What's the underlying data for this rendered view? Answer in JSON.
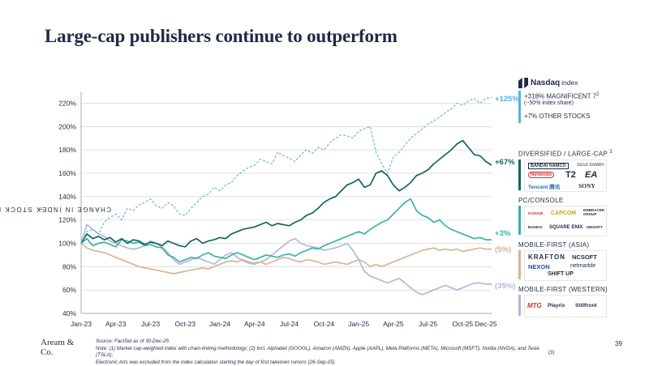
{
  "title": "Large-cap publishers continue to outperform",
  "colors": {
    "nasdaq": "#5bb3d6",
    "diversified": "#14655f",
    "pc_console": "#3bb3a3",
    "mobile_asia": "#d9b394",
    "mobile_western": "#b3b8d9",
    "grid": "#cccccc",
    "text": "#1f2a44"
  },
  "chart_data": {
    "type": "line",
    "title": "Large-cap publishers continue to outperform",
    "ylabel": "CHANGE IN INDEX STOCK PRICE",
    "ylabel_footnote": "1",
    "xlabel": "",
    "ylim": [
      40,
      230
    ],
    "yticks": [
      "40%",
      "60%",
      "80%",
      "100%",
      "120%",
      "140%",
      "160%",
      "180%",
      "200%",
      "220%"
    ],
    "ytick_values": [
      40,
      60,
      80,
      100,
      120,
      140,
      160,
      180,
      200,
      220
    ],
    "xticks": [
      "Jan-23",
      "Apr-23",
      "Jul-23",
      "Oct-23",
      "Jan-24",
      "Apr-24",
      "Jul-24",
      "Oct-24",
      "Jan-25",
      "Apr-25",
      "Jul-25",
      "Oct-25",
      "Dec-25"
    ],
    "xtick_months": [
      0,
      3,
      6,
      9,
      12,
      15,
      18,
      21,
      24,
      27,
      30,
      33,
      35
    ],
    "x_months": [
      0,
      0.5,
      1,
      1.5,
      2,
      2.5,
      3,
      3.5,
      4,
      4.5,
      5,
      5.5,
      6,
      6.5,
      7,
      7.5,
      8,
      8.5,
      9,
      9.5,
      10,
      10.5,
      11,
      11.5,
      12,
      12.5,
      13,
      13.5,
      14,
      14.5,
      15,
      15.5,
      16,
      16.5,
      17,
      17.5,
      18,
      18.5,
      19,
      19.5,
      20,
      20.5,
      21,
      21.5,
      22,
      22.5,
      23,
      23.5,
      24,
      24.5,
      25,
      25.5,
      26,
      26.5,
      27,
      27.5,
      28,
      28.5,
      29,
      29.5,
      30,
      30.5,
      31,
      31.5,
      32,
      32.5,
      33,
      33.5,
      34,
      34.5,
      35,
      35.5
    ],
    "series": [
      {
        "name": "Nasdaq index",
        "style": "dashed",
        "end_label": "+125%",
        "values": [
          100,
          110,
          112,
          108,
          118,
          122,
          125,
          120,
          130,
          128,
          133,
          135,
          138,
          132,
          130,
          135,
          132,
          125,
          124,
          130,
          135,
          140,
          142,
          148,
          145,
          150,
          152,
          158,
          162,
          165,
          167,
          172,
          170,
          168,
          178,
          175,
          173,
          170,
          176,
          180,
          177,
          182,
          180,
          186,
          190,
          193,
          192,
          190,
          196,
          198,
          200,
          178,
          168,
          160,
          174,
          178,
          184,
          190,
          194,
          198,
          202,
          205,
          208,
          212,
          215,
          220,
          218,
          222,
          224,
          220,
          224,
          225
        ]
      },
      {
        "name": "Diversified / Large-cap",
        "style": "solid",
        "end_label": "+67%",
        "values": [
          100,
          108,
          104,
          106,
          103,
          105,
          101,
          104,
          100,
          103,
          102,
          99,
          101,
          100,
          98,
          102,
          100,
          98,
          97,
          102,
          104,
          100,
          102,
          103,
          105,
          104,
          108,
          110,
          112,
          113,
          114,
          116,
          118,
          115,
          117,
          116,
          115,
          118,
          120,
          124,
          126,
          130,
          135,
          138,
          140,
          145,
          150,
          152,
          155,
          148,
          150,
          160,
          162,
          158,
          150,
          145,
          148,
          152,
          158,
          160,
          163,
          168,
          172,
          176,
          180,
          185,
          188,
          182,
          176,
          175,
          170,
          167
        ]
      },
      {
        "name": "PC / Console",
        "style": "solid",
        "end_label": "+3%",
        "values": [
          100,
          104,
          98,
          100,
          101,
          99,
          97,
          103,
          102,
          100,
          101,
          98,
          99,
          97,
          96,
          90,
          88,
          84,
          86,
          88,
          87,
          90,
          92,
          89,
          88,
          87,
          90,
          92,
          90,
          88,
          86,
          88,
          90,
          89,
          88,
          90,
          91,
          89,
          92,
          94,
          96,
          95,
          98,
          100,
          102,
          104,
          106,
          108,
          110,
          108,
          112,
          115,
          118,
          120,
          125,
          130,
          135,
          138,
          128,
          124,
          122,
          118,
          120,
          115,
          112,
          110,
          108,
          106,
          104,
          105,
          103,
          103
        ]
      },
      {
        "name": "Mobile-first (Asia)",
        "style": "solid",
        "end_label": "(5%)",
        "values": [
          100,
          96,
          94,
          93,
          92,
          90,
          88,
          86,
          84,
          82,
          80,
          79,
          78,
          77,
          76,
          75,
          74,
          75,
          76,
          77,
          78,
          79,
          78,
          80,
          82,
          84,
          85,
          84,
          86,
          84,
          83,
          84,
          82,
          84,
          86,
          88,
          87,
          85,
          84,
          86,
          85,
          84,
          82,
          83,
          84,
          83,
          82,
          84,
          86,
          84,
          80,
          82,
          80,
          82,
          84,
          86,
          88,
          90,
          92,
          94,
          95,
          96,
          94,
          95,
          94,
          95,
          93,
          94,
          95,
          96,
          95,
          95
        ]
      },
      {
        "name": "Mobile-first (Western)",
        "style": "solid",
        "end_label": "(35%)",
        "values": [
          100,
          116,
          112,
          108,
          106,
          102,
          100,
          98,
          96,
          95,
          96,
          98,
          102,
          100,
          97,
          92,
          86,
          82,
          84,
          86,
          88,
          86,
          84,
          82,
          86,
          90,
          92,
          88,
          85,
          83,
          82,
          84,
          86,
          90,
          94,
          98,
          102,
          104,
          100,
          98,
          97,
          96,
          94,
          95,
          96,
          98,
          100,
          94,
          86,
          76,
          72,
          70,
          68,
          66,
          68,
          70,
          66,
          62,
          58,
          56,
          58,
          60,
          62,
          64,
          62,
          60,
          62,
          64,
          66,
          66,
          65,
          65
        ]
      }
    ]
  },
  "panel": {
    "nasdaq_brand": "Nasdaq",
    "nasdaq_index": "index",
    "mag7_text": "+318% MAGNIFICENT 7",
    "mag7_sup": "2",
    "mag7_share": "(~50% index share)",
    "other_text": "+7% OTHER STOCKS",
    "diversified_head": "DIVERSIFIED / LARGE-CAP",
    "diversified_sup": "3",
    "diversified_logos": [
      "BANDAI NAMCO",
      "SEGA SAMMY",
      "Nintendo",
      "T2",
      "EA",
      "Tencent 腾讯",
      "SONY"
    ],
    "pc_head": "PC/CONSOLE",
    "pc_logos": [
      "KONAMI",
      "CAPCOM",
      "EMBRACER GROUP",
      "BANDAI",
      "SQUARE ENIX",
      "UBISOFT"
    ],
    "asia_head": "MOBILE-FIRST (ASIA)",
    "asia_logos": [
      "KRAFTON",
      "NCSOFT",
      "NEXON",
      "netmarble",
      "SHIFT UP"
    ],
    "western_head": "MOBILE-FIRST (WESTERN)",
    "western_logos": [
      "MTG",
      "Playrix",
      "Stillfront"
    ]
  },
  "footer": {
    "brand_line1": "Aream &",
    "brand_line2": "Co.",
    "source": "Source: FactSet as of 30-Dec-25",
    "note": "Note: (1) Market cap-weighted index with chain-linking methodology; (2) Incl. Alphabet (GOOGL), Amazon (AMZN), Apple (AAPL), Meta Platforms (META), Microsoft (MSFT), Nvidia (NVDA), and Tesla (TSLA);",
    "note_ref": "(3)",
    "note2": "Electronic Arts was excluded from the index calculation starting the day of first takeover rumors (26-Sep-25)",
    "page": "39"
  }
}
